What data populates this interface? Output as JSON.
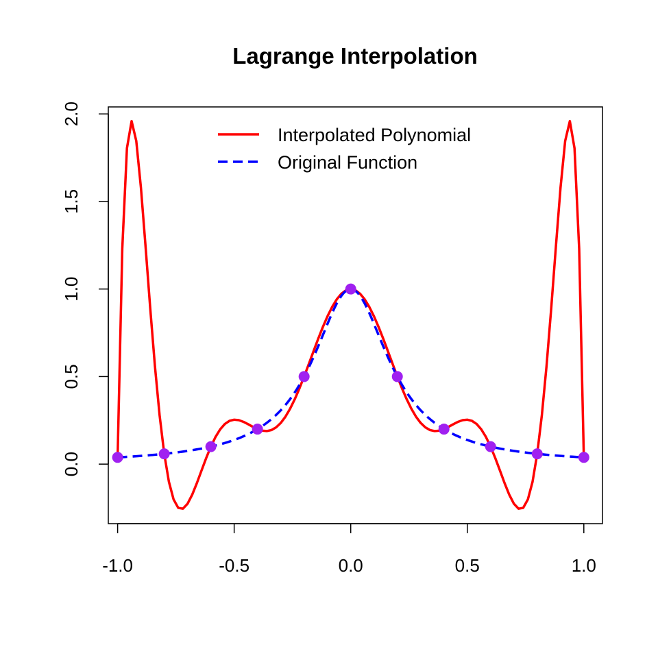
{
  "chart_data": {
    "type": "line",
    "title": "Lagrange Interpolation",
    "xlabel": "",
    "ylabel": "",
    "xlim": [
      -1.04,
      1.08
    ],
    "ylim": [
      -0.34,
      2.04
    ],
    "x_ticks": [
      -1.0,
      -0.5,
      0.0,
      0.5,
      1.0
    ],
    "x_tick_labels": [
      "-1.0",
      "-0.5",
      "0.0",
      "0.5",
      "1.0"
    ],
    "y_ticks": [
      0.0,
      0.5,
      1.0,
      1.5,
      2.0
    ],
    "y_tick_labels": [
      "0.0",
      "0.5",
      "1.0",
      "1.5",
      "2.0"
    ],
    "grid": false,
    "legend_position": "top-center",
    "series": [
      {
        "name": "Interpolated Polynomial",
        "kind": "polynomial-interpolant",
        "color": "#ff0000",
        "style": "solid"
      },
      {
        "name": "Original Function",
        "kind": "runge-function",
        "color": "#0000ff",
        "style": "dashed"
      },
      {
        "kind": "nodes",
        "color": "#a020f0",
        "style": "points",
        "x": [
          -1.0,
          -0.8,
          -0.6,
          -0.4,
          -0.2,
          0.0,
          0.2,
          0.4,
          0.6,
          0.8,
          1.0
        ],
        "y": [
          0.0385,
          0.0588,
          0.1,
          0.2,
          0.5,
          1.0,
          0.5,
          0.2,
          0.1,
          0.0588,
          0.0385
        ]
      }
    ]
  }
}
